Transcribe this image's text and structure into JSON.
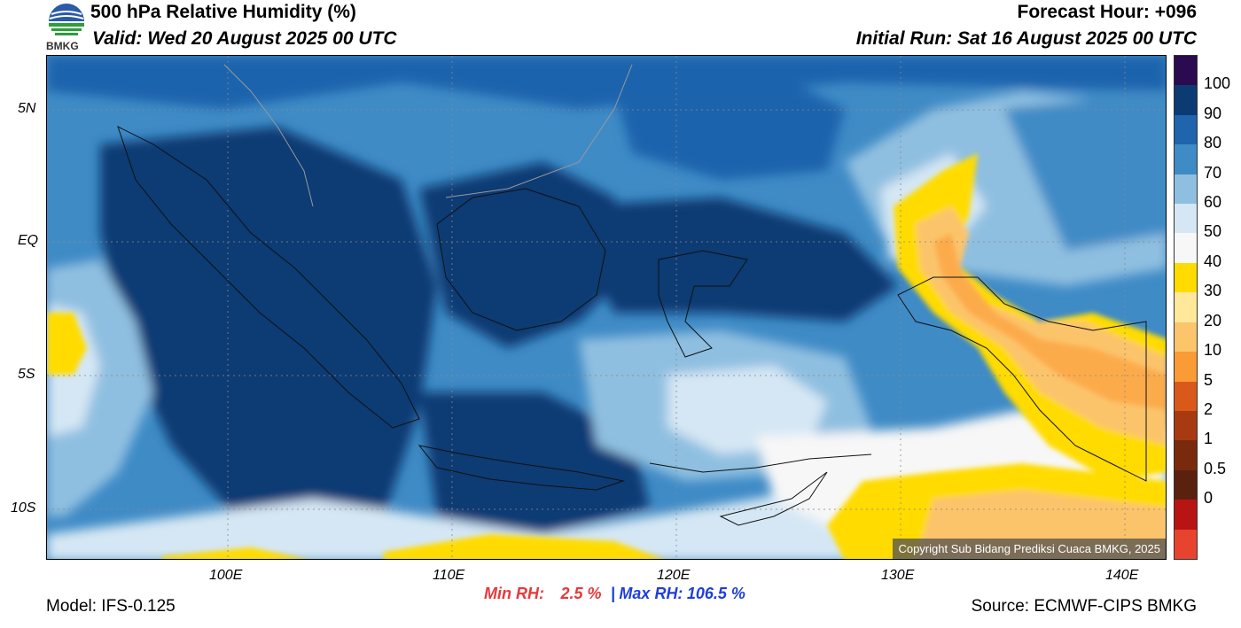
{
  "header": {
    "title": "500 hPa Relative Humidity (%)",
    "valid": "Valid: Wed 20 August 2025 00 UTC",
    "forecast_hour": "Forecast Hour: +096",
    "initial_run": "Initial Run: Sat 16 August 2025 00 UTC",
    "logo_text": "BMKG"
  },
  "map": {
    "lat_ticks": [
      "5N",
      "EQ",
      "5S",
      "10S"
    ],
    "lon_ticks": [
      "100E",
      "110E",
      "120E",
      "130E",
      "140E"
    ],
    "copyright": "Copyright Sub Bidang Prediksi Cuaca BMKG, 2025"
  },
  "colorbar": {
    "labels": [
      "100",
      "90",
      "80",
      "70",
      "60",
      "50",
      "40",
      "30",
      "20",
      "10",
      "5",
      "2",
      "1",
      "0.5",
      "0"
    ],
    "colors": [
      "#2b0a4f",
      "#0c3a73",
      "#1f64ad",
      "#3f8bc6",
      "#8fbfe0",
      "#d5e7f4",
      "#f7f7f7",
      "#ffdb00",
      "#ffe89a",
      "#fcc46b",
      "#fb9b35",
      "#d9591a",
      "#a83a12",
      "#7a2a0c",
      "#5a220e",
      "#b81414",
      "#e8432e"
    ]
  },
  "stats": {
    "min_label": "Min RH:",
    "min_value": "2.5 %",
    "separator": "|",
    "max_label": "Max RH:",
    "max_value": "106.5 %"
  },
  "footer": {
    "model": "Model: IFS-0.125",
    "source": "Source: ECMWF-CIPS BMKG"
  }
}
